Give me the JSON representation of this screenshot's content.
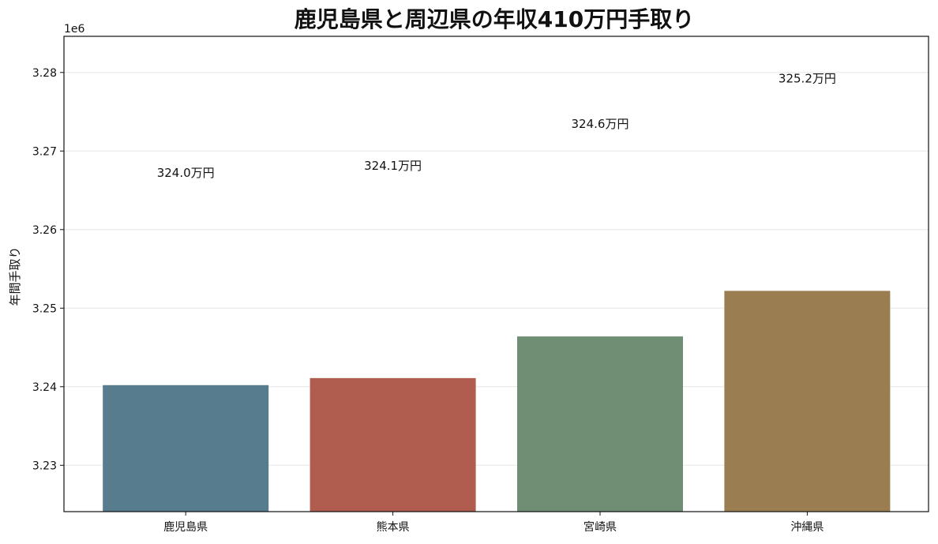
{
  "chart_data": {
    "type": "bar",
    "title": "鹿児島県と周辺県の年収410万円手取り",
    "xlabel": "",
    "ylabel": "年間手取り",
    "offset_label": "1e6",
    "categories": [
      "鹿児島県",
      "熊本県",
      "宮崎県",
      "沖縄県"
    ],
    "values": [
      3240200,
      3241100,
      3246400,
      3252200
    ],
    "value_labels": [
      "324.0万円",
      "324.1万円",
      "324.6万円",
      "325.2万円"
    ],
    "colors": [
      "#577c8e",
      "#b05c4e",
      "#6f8e73",
      "#9a7d50"
    ],
    "ylim": [
      3224100,
      3284600
    ],
    "yticks": [
      3230000,
      3240000,
      3250000,
      3260000,
      3270000,
      3280000
    ],
    "ytick_labels": [
      "3.23",
      "3.24",
      "3.25",
      "3.26",
      "3.27",
      "3.28"
    ],
    "grid": "horizontal"
  }
}
